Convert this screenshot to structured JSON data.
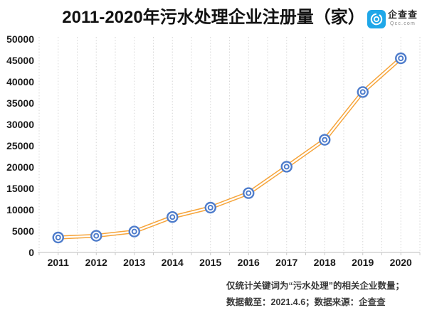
{
  "header": {
    "title": "2011-2020年污水处理企业注册量（家）",
    "logo": {
      "brand": "企查查",
      "domain": "Qcc.com",
      "color": "#1FA7E8"
    }
  },
  "chart_data": {
    "type": "line",
    "title": "2011-2020年污水处理企业注册量（家）",
    "categories": [
      "2011",
      "2012",
      "2013",
      "2014",
      "2015",
      "2016",
      "2017",
      "2018",
      "2019",
      "2020"
    ],
    "series": [
      {
        "name": "污水处理企业注册量",
        "values": [
          3500,
          3900,
          4900,
          8300,
          10500,
          13900,
          20100,
          26400,
          37600,
          45500
        ]
      }
    ],
    "xlabel": "",
    "ylabel": "",
    "ylim": [
      0,
      50000
    ],
    "y_ticks": [
      0,
      5000,
      10000,
      15000,
      20000,
      25000,
      30000,
      35000,
      40000,
      45000,
      50000
    ],
    "grid": "vertical-dotted",
    "legend": "none",
    "line_color": "#F6A43A",
    "line_style": "double-outline",
    "marker": "double-circle",
    "marker_color": "#4E7CCB",
    "grid_color": "#d6d6d6",
    "axis_color": "#c9c9c9"
  },
  "footer": {
    "note1": "仅统计关键词为“污水处理”的相关企业数量；",
    "note2": "数据截至：2021.4.6；数据来源：企查查"
  }
}
